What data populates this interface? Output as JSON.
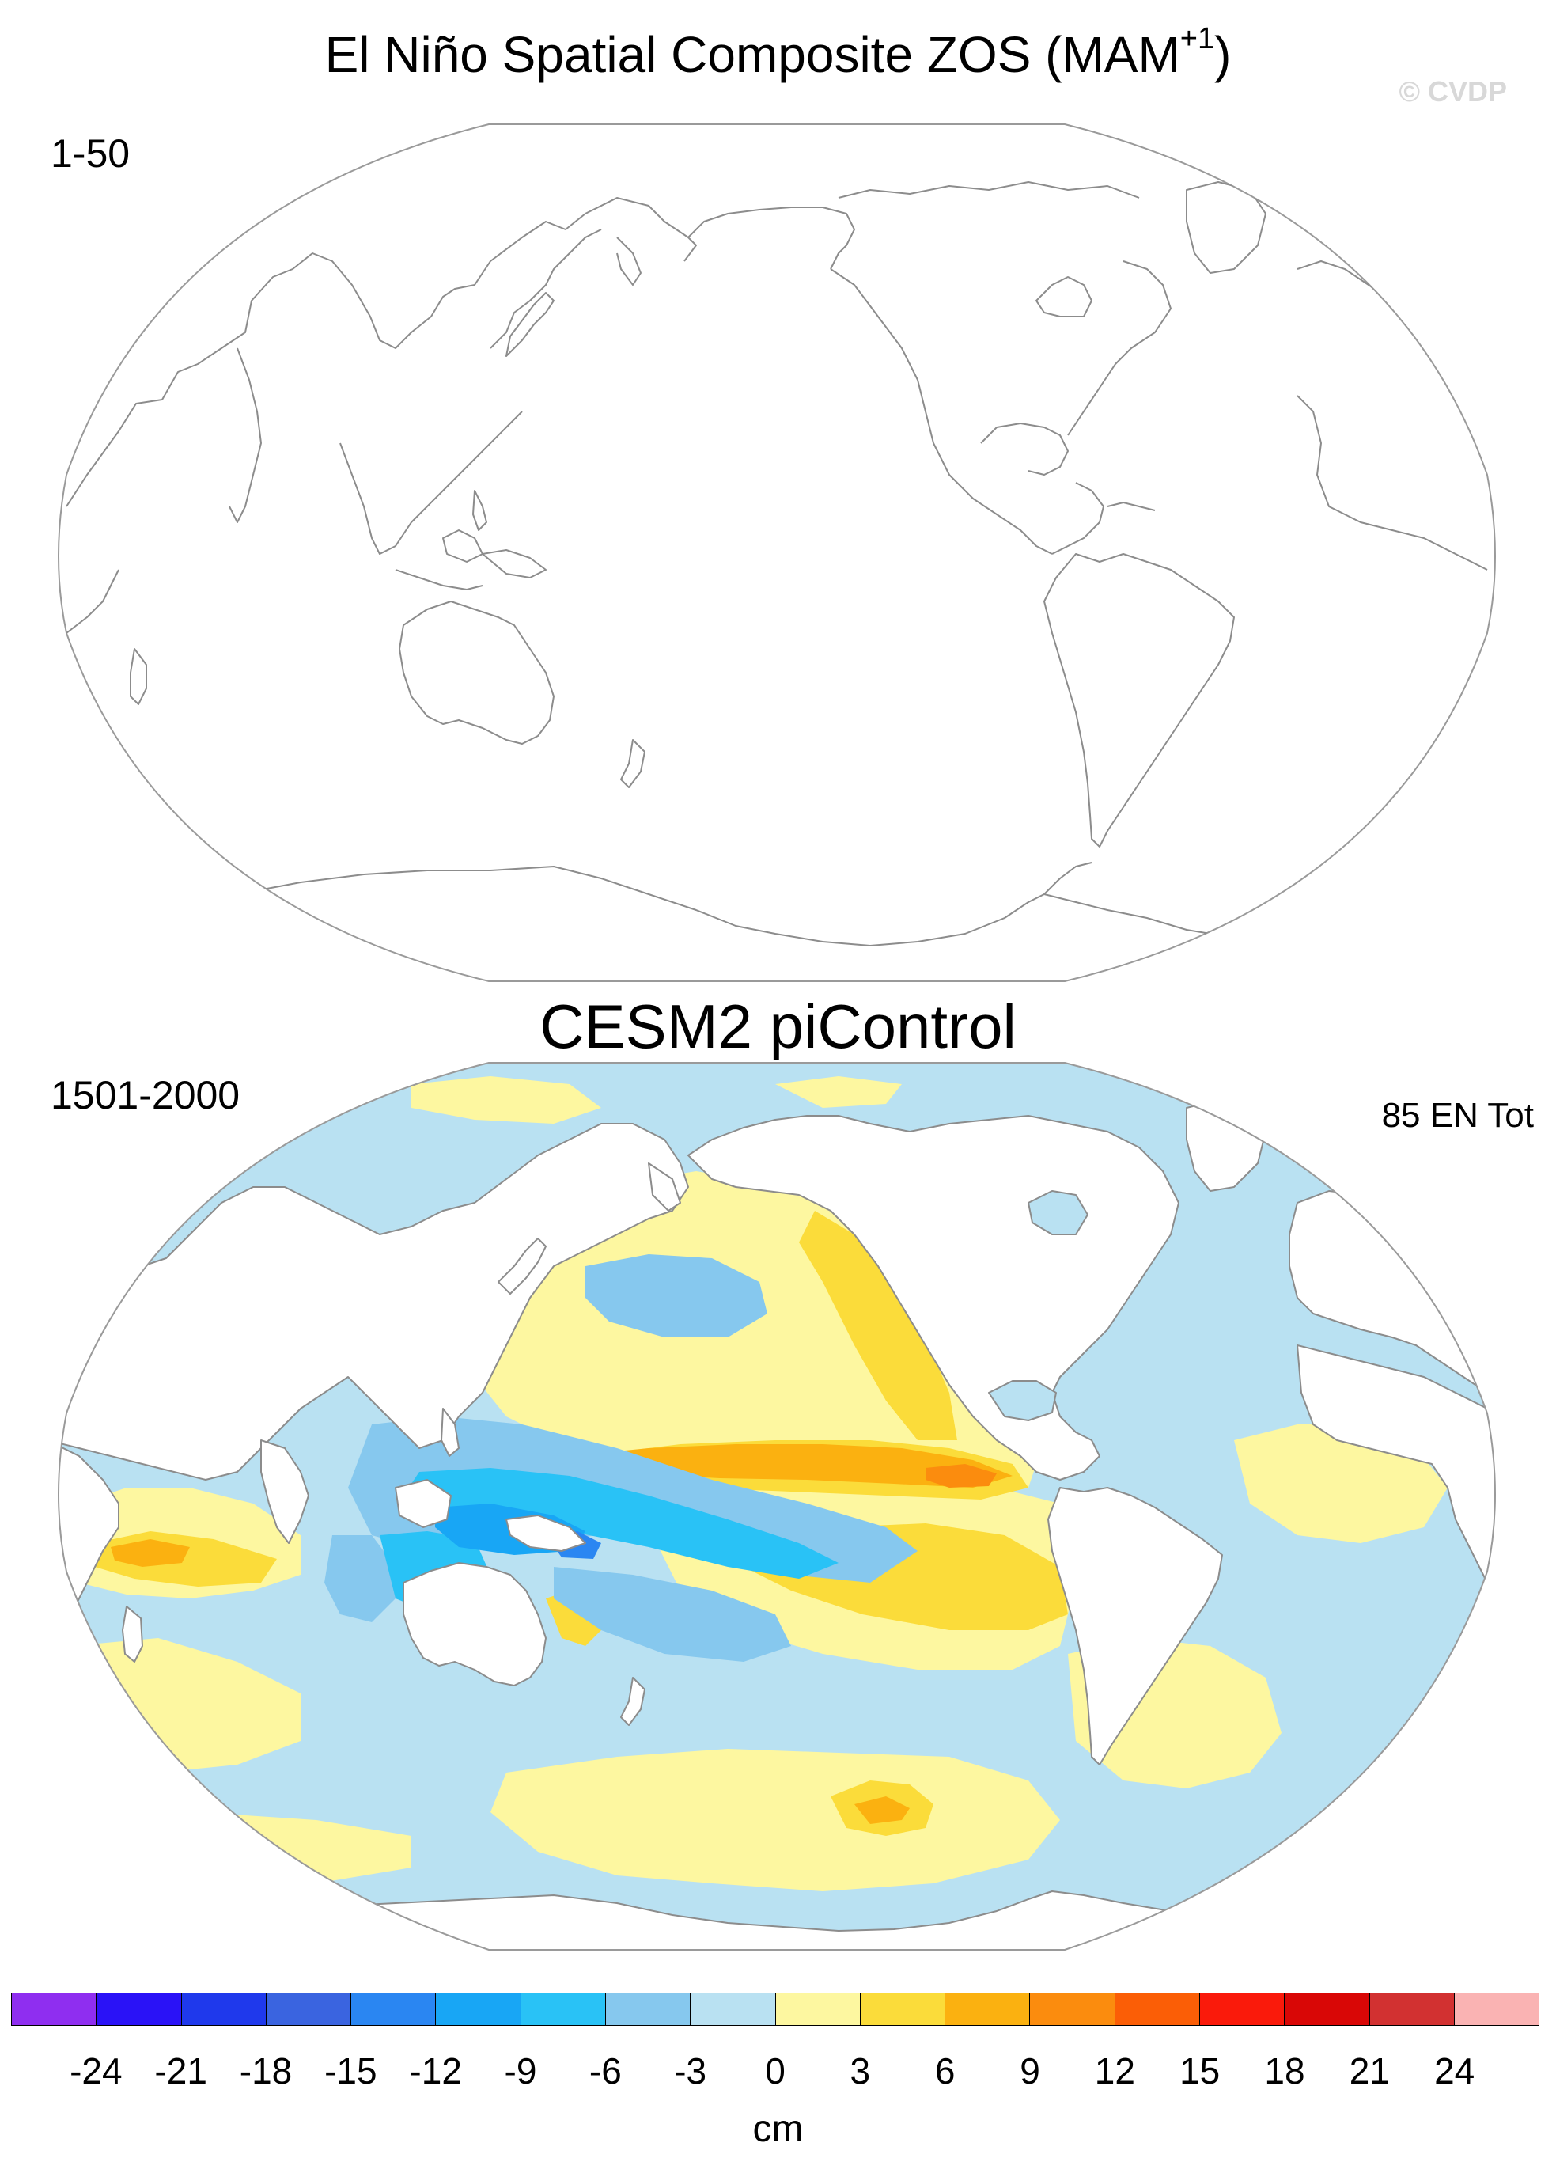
{
  "header": {
    "title": "El Niño Spatial Composite ZOS (MAM",
    "title_superscript": "+1",
    "title_close": ")",
    "watermark": "© CVDP"
  },
  "panel_top": {
    "label": "1-50"
  },
  "panel_bottom": {
    "title": "CESM2 piControl",
    "label": "1501-2000",
    "count_label": "85 EN Tot"
  },
  "colorbar": {
    "units": "cm",
    "ticks": [
      "-24",
      "-21",
      "-18",
      "-15",
      "-12",
      "-9",
      "-6",
      "-3",
      "0",
      "3",
      "6",
      "9",
      "12",
      "15",
      "18",
      "21",
      "24"
    ],
    "colors": [
      "#8f2ef0",
      "#2a12f7",
      "#1f39ec",
      "#3a64e0",
      "#2a86f2",
      "#18a6f5",
      "#29c2f6",
      "#86c8ee",
      "#b9e1f2",
      "#fdf7a0",
      "#fbdc3a",
      "#fbb110",
      "#fb8c0e",
      "#fb5e06",
      "#fa1a0b",
      "#d90706",
      "#d23131",
      "#fab3b3"
    ]
  },
  "map_colors": {
    "land": "#ffffff",
    "coast": "#8c8c8c",
    "frame": "#9a9a9a"
  }
}
